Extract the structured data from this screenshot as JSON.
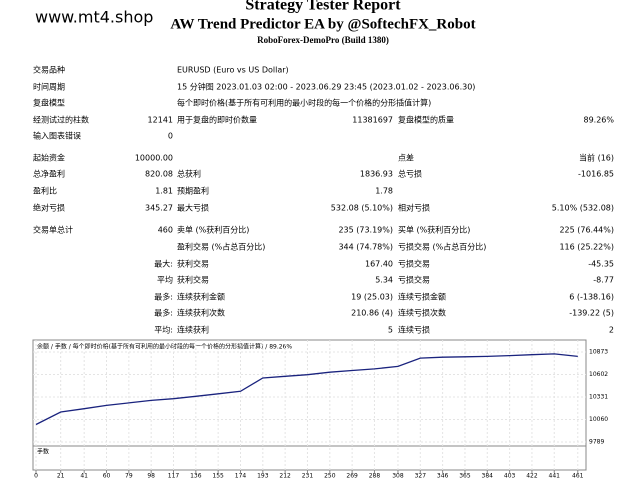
{
  "watermark": "www.mt4.shop",
  "header": {
    "title": "Strategy Tester Report",
    "subtitle": "AW Trend Predictor EA by @SoftechFX_Robot",
    "server": "RoboForex-DemoPro (Build 1380)"
  },
  "table": {
    "rows": [
      {
        "label1": "交易品种",
        "label2": "EURUSD (Euro vs US Dollar)"
      },
      {
        "label1": "时间周期",
        "label2": "15 分钟图 2023.01.03 02:00 - 2023.06.29 23:45 (2023.01.02 - 2023.06.30)"
      },
      {
        "label1": "复盘模型",
        "label2": "每个即时价格(基于所有可利用的最小时段的每一个价格的分形插值计算)"
      },
      {
        "label1": "经测试过的柱数",
        "value1": "12141",
        "label2": "用于复盘的即时价数量",
        "value2": "11381697",
        "label3": "复盘模型的质量",
        "value3": "89.26%"
      },
      {
        "label1": "输入图表错误",
        "value1": "0"
      },
      {
        "label1": "起始资金",
        "value1": "10000.00",
        "label3": "点差",
        "value3": "当前 (16)"
      },
      {
        "label1": "总净盈利",
        "value1": "820.08",
        "label2": "总获利",
        "value2": "1836.93",
        "label3": "总亏损",
        "value3": "-1016.85"
      },
      {
        "label1": "盈利比",
        "value1": "1.81",
        "label2": "预期盈利",
        "value2": "1.78"
      },
      {
        "label1": "绝对亏损",
        "value1": "345.27",
        "label2": "最大亏损",
        "value2": "532.08 (5.10%)",
        "label3": "相对亏损",
        "value3": "5.10% (532.08)"
      },
      {
        "label1": "交易单总计",
        "value1": "460",
        "label2": "卖单 (%获利百分比)",
        "value2": "235 (73.19%)",
        "label3": "买单 (%获利百分比)",
        "value3": "225 (76.44%)"
      },
      {
        "label2": "盈利交易 (%占总百分比)",
        "value2": "344 (74.78%)",
        "label3": "亏损交易 (%占总百分比)",
        "value3": "116 (25.22%)"
      },
      {
        "value1": "最大:",
        "label2": "获利交易",
        "value2": "167.40",
        "label3": "亏损交易",
        "value3": "-45.35"
      },
      {
        "value1": "平均",
        "label2": "获利交易",
        "value2": "5.34",
        "label3": "亏损交易",
        "value3": "-8.77"
      },
      {
        "value1": "最多:",
        "label2": "连续获利金额",
        "value2": "19 (25.03)",
        "label3": "连续亏损金额",
        "value3": "6 (-138.16)"
      },
      {
        "value1": "最多:",
        "label2": "连续获利次数",
        "value2": "210.86 (4)",
        "label3": "连续亏损次数",
        "value3": "-139.22 (5)"
      },
      {
        "value1": "平均:",
        "label2": "连续获利",
        "value2": "5",
        "label3": "连续亏损",
        "value3": "2"
      }
    ]
  },
  "chart_data": {
    "type": "line",
    "title": "余额 / 手数 / 每个即时价格(基于所有可利用的最小时段的每一个价格的分形插值计算) / 89.26%",
    "volume_label": "手数",
    "x": [
      0,
      21,
      41,
      60,
      79,
      98,
      117,
      136,
      155,
      174,
      193,
      212,
      231,
      250,
      269,
      288,
      308,
      327,
      346,
      365,
      384,
      403,
      422,
      441,
      461
    ],
    "series": [
      {
        "name": "余额",
        "color": "#1a237e",
        "values": [
          10000,
          10150,
          10190,
          10230,
          10260,
          10290,
          10310,
          10340,
          10370,
          10400,
          10560,
          10580,
          10600,
          10630,
          10650,
          10670,
          10700,
          10800,
          10810,
          10815,
          10820,
          10830,
          10840,
          10850,
          10820
        ]
      }
    ],
    "xlim": [
      0,
      468
    ],
    "ylim": [
      9789,
      10873
    ],
    "xticks": [
      0,
      21,
      41,
      60,
      79,
      98,
      117,
      136,
      155,
      174,
      193,
      212,
      231,
      250,
      269,
      288,
      308,
      327,
      346,
      365,
      384,
      403,
      422,
      441,
      461
    ],
    "yticks": [
      9789,
      10060,
      10331,
      10602,
      10873
    ],
    "grid": true
  }
}
